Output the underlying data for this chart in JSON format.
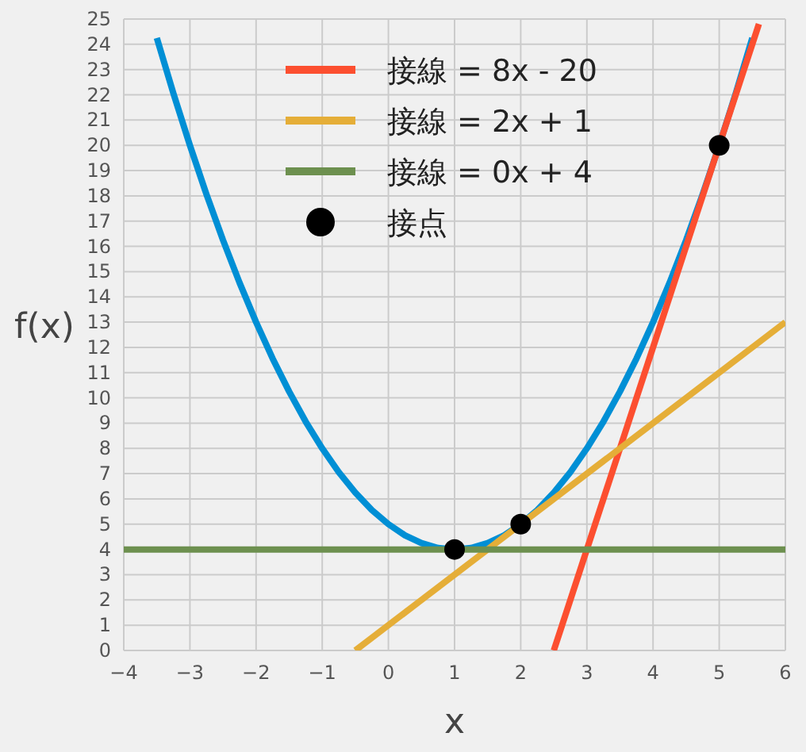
{
  "chart_data": {
    "type": "line",
    "xlabel": "x",
    "ylabel": "f(x)",
    "xlim": [
      -4,
      6
    ],
    "ylim": [
      0,
      25
    ],
    "xticks": [
      {
        "value": -4,
        "label": "−4"
      },
      {
        "value": -3,
        "label": "−3"
      },
      {
        "value": -2,
        "label": "−2"
      },
      {
        "value": -1,
        "label": "−1"
      },
      0,
      1,
      2,
      3,
      4,
      5,
      6
    ],
    "yticks": [
      0,
      1,
      2,
      3,
      4,
      5,
      6,
      7,
      8,
      9,
      10,
      11,
      12,
      13,
      14,
      15,
      16,
      17,
      18,
      19,
      20,
      21,
      22,
      23,
      24,
      25
    ],
    "grid": true,
    "legend": "top",
    "line_style": "solid",
    "series": [
      {
        "color": "#008fd5",
        "x": [
          -3.5,
          -3.25,
          -3,
          -2.75,
          -2.5,
          -2.25,
          -2,
          -1.75,
          -1.5,
          -1.25,
          -1,
          -0.75,
          -0.5,
          -0.25,
          0,
          0.25,
          0.5,
          0.75,
          1,
          1.25,
          1.5,
          1.75,
          2,
          2.25,
          2.5,
          2.75,
          3,
          3.25,
          3.5,
          3.75,
          4,
          4.25,
          4.5,
          4.75,
          5,
          5.25,
          5.5
        ],
        "values": [
          24.25,
          22.06,
          20,
          18.06,
          16.25,
          14.56,
          13,
          11.56,
          10.25,
          9.06,
          8,
          7.06,
          6.25,
          5.56,
          5,
          4.56,
          4.25,
          4.06,
          4,
          4.06,
          4.25,
          4.56,
          5,
          5.56,
          6.25,
          7.06,
          8,
          9.06,
          10.25,
          11.56,
          13,
          14.56,
          16.25,
          18.06,
          20,
          22.06,
          24.25
        ]
      },
      {
        "name": "接線 = 8x - 20",
        "color": "#fc4f30",
        "x": [
          2.5,
          5.6
        ],
        "values": [
          0,
          24.8
        ]
      },
      {
        "name": "接線 = 2x + 1",
        "color": "#e5ae38",
        "x": [
          -0.5,
          6
        ],
        "values": [
          0,
          13
        ]
      },
      {
        "name": "接線 = 0x + 4",
        "color": "#6d904f",
        "x": [
          -4,
          6
        ],
        "values": [
          4,
          4
        ]
      },
      {
        "name": "接点",
        "type": "scatter",
        "marker": "circle",
        "color": "#000000",
        "x": [
          1,
          2,
          5
        ],
        "values": [
          4,
          5,
          20
        ]
      }
    ]
  }
}
